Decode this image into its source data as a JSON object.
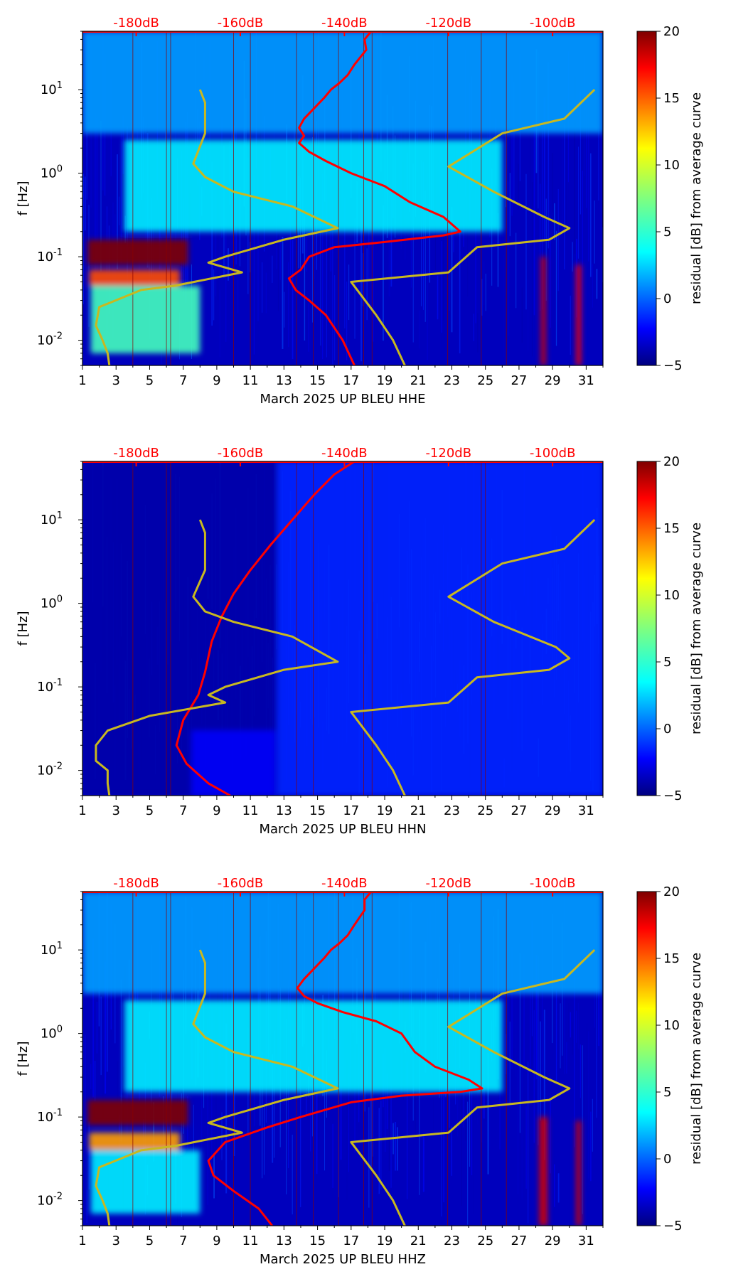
{
  "chart_data": [
    {
      "type": "heatmap",
      "panel": "HHE",
      "xlabel": "March 2025 UP BLEU  HHE",
      "ylabel": "f [Hz]",
      "xlim": [
        1,
        32
      ],
      "ylim": [
        0.005,
        50
      ],
      "yscale": "log",
      "xticks": [
        1,
        3,
        5,
        7,
        9,
        11,
        13,
        15,
        17,
        19,
        21,
        23,
        25,
        27,
        29,
        31
      ],
      "yticks": [
        "10^-2",
        "10^-1",
        "10^0",
        "10^1"
      ],
      "top_labels": [
        "-180dB",
        "-160dB",
        "-140dB",
        "-120dB",
        "-100dB"
      ],
      "top_label_days": [
        4.2,
        10.4,
        16.6,
        22.8,
        29.0
      ],
      "colorbar": {
        "label": "residual [dB] from average curve",
        "min": -5,
        "max": 20,
        "ticks": [
          -5,
          0,
          5,
          10,
          15,
          20
        ]
      },
      "vertical_lines": [
        4.0,
        6.0,
        6.25,
        10.0,
        11.0,
        13.75,
        14.75,
        16.25,
        17.75,
        18.25,
        22.75,
        24.75,
        26.25
      ],
      "hotspots": [
        {
          "x0": 1.3,
          "x1": 7.3,
          "f0": 0.08,
          "f1": 0.16,
          "level": 20
        },
        {
          "x0": 1.4,
          "x1": 6.8,
          "f0": 0.045,
          "f1": 0.07,
          "level": 15
        },
        {
          "x0": 1.5,
          "x1": 8.0,
          "f0": 0.007,
          "f1": 0.045,
          "level": 6
        },
        {
          "x0": 1.0,
          "x1": 32.0,
          "f0": 3.0,
          "f1": 50.0,
          "level": 2
        },
        {
          "x0": 3.5,
          "x1": 26.0,
          "f0": 0.2,
          "f1": 2.5,
          "level": 4
        },
        {
          "x0": 28.3,
          "x1": 28.6,
          "f0": 0.005,
          "f1": 0.1,
          "level": 18
        },
        {
          "x0": 30.4,
          "x1": 30.7,
          "f0": 0.005,
          "f1": 0.08,
          "level": 17
        }
      ],
      "series": [
        {
          "color": "#ff0000",
          "points": [
            [
              18.2,
              50
            ],
            [
              17.8,
              40
            ],
            [
              17.9,
              30
            ],
            [
              17.2,
              20
            ],
            [
              16.8,
              15
            ],
            [
              16.3,
              12
            ],
            [
              15.8,
              10
            ],
            [
              15.4,
              8
            ],
            [
              14.8,
              6
            ],
            [
              14.2,
              4.5
            ],
            [
              13.9,
              3.5
            ],
            [
              14.2,
              2.8
            ],
            [
              13.9,
              2.3
            ],
            [
              14.5,
              1.8
            ],
            [
              15.5,
              1.4
            ],
            [
              17,
              1.0
            ],
            [
              19,
              0.7
            ],
            [
              20.5,
              0.45
            ],
            [
              22.5,
              0.3
            ],
            [
              23.5,
              0.2
            ],
            [
              22.5,
              0.18
            ],
            [
              19,
              0.15
            ],
            [
              16,
              0.13
            ],
            [
              14.5,
              0.1
            ],
            [
              14,
              0.07
            ],
            [
              13.3,
              0.055
            ],
            [
              13.7,
              0.04
            ],
            [
              14.5,
              0.03
            ],
            [
              15.5,
              0.02
            ],
            [
              16.5,
              0.01
            ],
            [
              17.2,
              0.005
            ]
          ]
        },
        {
          "color": "#c8b820",
          "points": [
            [
              8,
              10
            ],
            [
              8.3,
              7
            ],
            [
              8.3,
              3
            ],
            [
              7.6,
              1.3
            ],
            [
              8.3,
              0.9
            ],
            [
              10,
              0.6
            ],
            [
              13.5,
              0.4
            ],
            [
              16.2,
              0.22
            ],
            [
              13,
              0.16
            ],
            [
              9.5,
              0.1
            ],
            [
              8.5,
              0.085
            ],
            [
              10.5,
              0.065
            ],
            [
              6.5,
              0.045
            ],
            [
              4.5,
              0.04
            ],
            [
              2,
              0.025
            ],
            [
              1.8,
              0.015
            ],
            [
              2.2,
              0.01
            ],
            [
              2.5,
              0.007
            ],
            [
              2.6,
              0.005
            ]
          ]
        },
        {
          "color": "#c8b820",
          "points": [
            [
              31.5,
              10
            ],
            [
              29.7,
              4.5
            ],
            [
              26,
              3
            ],
            [
              22.8,
              1.2
            ],
            [
              25.5,
              0.6
            ],
            [
              28.5,
              0.3
            ],
            [
              30,
              0.22
            ],
            [
              28.8,
              0.16
            ],
            [
              24.5,
              0.13
            ],
            [
              22.8,
              0.065
            ],
            [
              17,
              0.05
            ],
            [
              18.5,
              0.02
            ],
            [
              19.5,
              0.01
            ],
            [
              20.2,
              0.005
            ]
          ]
        }
      ]
    },
    {
      "type": "heatmap",
      "panel": "HHN",
      "xlabel": "March 2025 UP BLEU  HHN",
      "ylabel": "f [Hz]",
      "xlim": [
        1,
        32
      ],
      "ylim": [
        0.005,
        50
      ],
      "yscale": "log",
      "xticks": [
        1,
        3,
        5,
        7,
        9,
        11,
        13,
        15,
        17,
        19,
        21,
        23,
        25,
        27,
        29,
        31
      ],
      "yticks": [
        "10^-2",
        "10^-1",
        "10^0",
        "10^1"
      ],
      "top_labels": [
        "-180dB",
        "-160dB",
        "-140dB",
        "-120dB",
        "-100dB"
      ],
      "top_label_days": [
        4.2,
        10.4,
        16.6,
        22.8,
        29.0
      ],
      "colorbar": {
        "label": "residual [dB] from average curve",
        "min": -5,
        "max": 20,
        "ticks": [
          -5,
          0,
          5,
          10,
          15,
          20
        ]
      },
      "vertical_lines": [
        4.0,
        6.0,
        6.25,
        13.75,
        14.75,
        17.75,
        18.25,
        24.75,
        25.0
      ],
      "hotspots": [
        {
          "x0": 1.0,
          "x1": 12.6,
          "f0": 0.005,
          "f1": 50,
          "level": -4
        },
        {
          "x0": 12.6,
          "x1": 32.0,
          "f0": 0.005,
          "f1": 50,
          "level": -1
        },
        {
          "x0": 7.5,
          "x1": 12.5,
          "f0": 0.005,
          "f1": 0.03,
          "level": -2
        }
      ],
      "series": [
        {
          "color": "#ff0000",
          "points": [
            [
              17.2,
              50
            ],
            [
              16,
              35
            ],
            [
              14.8,
              20
            ],
            [
              13.5,
              10
            ],
            [
              12.2,
              5
            ],
            [
              11,
              2.5
            ],
            [
              10,
              1.3
            ],
            [
              9.3,
              0.7
            ],
            [
              8.7,
              0.35
            ],
            [
              8.3,
              0.15
            ],
            [
              7.9,
              0.08
            ],
            [
              7,
              0.04
            ],
            [
              6.6,
              0.02
            ],
            [
              7.2,
              0.012
            ],
            [
              8.5,
              0.007
            ],
            [
              9.8,
              0.005
            ]
          ]
        },
        {
          "color": "#c8b820",
          "points": [
            [
              8,
              10
            ],
            [
              8.3,
              7
            ],
            [
              8.3,
              2.5
            ],
            [
              7.6,
              1.2
            ],
            [
              8.3,
              0.8
            ],
            [
              10,
              0.6
            ],
            [
              13.5,
              0.4
            ],
            [
              16.2,
              0.2
            ],
            [
              13,
              0.16
            ],
            [
              9.5,
              0.1
            ],
            [
              8.5,
              0.08
            ],
            [
              9.5,
              0.065
            ],
            [
              5,
              0.045
            ],
            [
              2.5,
              0.03
            ],
            [
              1.8,
              0.02
            ],
            [
              1.8,
              0.013
            ],
            [
              2.5,
              0.01
            ],
            [
              2.5,
              0.007
            ],
            [
              2.6,
              0.005
            ]
          ]
        },
        {
          "color": "#c8b820",
          "points": [
            [
              31.5,
              10
            ],
            [
              29.7,
              4.5
            ],
            [
              26,
              3
            ],
            [
              22.8,
              1.2
            ],
            [
              25.5,
              0.6
            ],
            [
              29.2,
              0.3
            ],
            [
              30,
              0.22
            ],
            [
              28.8,
              0.16
            ],
            [
              24.5,
              0.13
            ],
            [
              22.8,
              0.065
            ],
            [
              17,
              0.05
            ],
            [
              18.5,
              0.02
            ],
            [
              19.5,
              0.01
            ],
            [
              20.2,
              0.005
            ]
          ]
        }
      ]
    },
    {
      "type": "heatmap",
      "panel": "HHZ",
      "xlabel": "March 2025 UP BLEU  HHZ",
      "ylabel": "f [Hz]",
      "xlim": [
        1,
        32
      ],
      "ylim": [
        0.005,
        50
      ],
      "yscale": "log",
      "xticks": [
        1,
        3,
        5,
        7,
        9,
        11,
        13,
        15,
        17,
        19,
        21,
        23,
        25,
        27,
        29,
        31
      ],
      "yticks": [
        "10^-2",
        "10^-1",
        "10^0",
        "10^1"
      ],
      "top_labels": [
        "-180dB",
        "-160dB",
        "-140dB",
        "-120dB",
        "-100dB"
      ],
      "top_label_days": [
        4.2,
        10.4,
        16.6,
        22.8,
        29.0
      ],
      "colorbar": {
        "label": "residual [dB] from average curve",
        "min": -5,
        "max": 20,
        "ticks": [
          -5,
          0,
          5,
          10,
          15,
          20
        ]
      },
      "vertical_lines": [
        4.0,
        6.0,
        6.25,
        10.0,
        11.0,
        13.75,
        14.75,
        16.25,
        17.75,
        18.25,
        22.75,
        24.75,
        26.25
      ],
      "hotspots": [
        {
          "x0": 1.3,
          "x1": 7.3,
          "f0": 0.08,
          "f1": 0.16,
          "level": 20
        },
        {
          "x0": 1.4,
          "x1": 6.8,
          "f0": 0.04,
          "f1": 0.065,
          "level": 13
        },
        {
          "x0": 1.5,
          "x1": 8.0,
          "f0": 0.007,
          "f1": 0.04,
          "level": 4
        },
        {
          "x0": 1.0,
          "x1": 32.0,
          "f0": 3.0,
          "f1": 50.0,
          "level": 2
        },
        {
          "x0": 3.5,
          "x1": 26.0,
          "f0": 0.2,
          "f1": 2.5,
          "level": 4
        },
        {
          "x0": 28.2,
          "x1": 28.7,
          "f0": 0.005,
          "f1": 0.1,
          "level": 18
        },
        {
          "x0": 30.4,
          "x1": 30.7,
          "f0": 0.005,
          "f1": 0.09,
          "level": 18
        }
      ],
      "series": [
        {
          "color": "#ff0000",
          "points": [
            [
              18.2,
              50
            ],
            [
              17.8,
              40
            ],
            [
              17.8,
              30
            ],
            [
              17.2,
              20
            ],
            [
              16.8,
              15
            ],
            [
              16.3,
              12
            ],
            [
              15.8,
              10
            ],
            [
              15.4,
              8
            ],
            [
              14.8,
              6
            ],
            [
              14.2,
              4.5
            ],
            [
              13.8,
              3.5
            ],
            [
              14.2,
              2.8
            ],
            [
              15,
              2.3
            ],
            [
              16.5,
              1.8
            ],
            [
              18.5,
              1.4
            ],
            [
              20,
              1.0
            ],
            [
              20.8,
              0.6
            ],
            [
              22,
              0.4
            ],
            [
              24,
              0.28
            ],
            [
              24.8,
              0.22
            ],
            [
              23.5,
              0.2
            ],
            [
              20,
              0.18
            ],
            [
              17,
              0.15
            ],
            [
              14,
              0.1
            ],
            [
              12,
              0.075
            ],
            [
              9.5,
              0.05
            ],
            [
              8.5,
              0.03
            ],
            [
              8.8,
              0.02
            ],
            [
              10,
              0.013
            ],
            [
              11.5,
              0.008
            ],
            [
              12.3,
              0.005
            ]
          ]
        },
        {
          "color": "#c8b820",
          "points": [
            [
              8,
              10
            ],
            [
              8.3,
              7
            ],
            [
              8.3,
              3
            ],
            [
              7.6,
              1.3
            ],
            [
              8.3,
              0.9
            ],
            [
              10,
              0.6
            ],
            [
              13.5,
              0.4
            ],
            [
              16.2,
              0.22
            ],
            [
              13,
              0.16
            ],
            [
              9.5,
              0.1
            ],
            [
              8.5,
              0.085
            ],
            [
              10.5,
              0.065
            ],
            [
              6.5,
              0.045
            ],
            [
              4.5,
              0.04
            ],
            [
              2,
              0.025
            ],
            [
              1.8,
              0.015
            ],
            [
              2.2,
              0.01
            ],
            [
              2.5,
              0.007
            ],
            [
              2.6,
              0.005
            ]
          ]
        },
        {
          "color": "#c8b820",
          "points": [
            [
              31.5,
              10
            ],
            [
              29.7,
              4.5
            ],
            [
              26,
              3
            ],
            [
              22.8,
              1.2
            ],
            [
              25.5,
              0.6
            ],
            [
              28.5,
              0.3
            ],
            [
              30,
              0.22
            ],
            [
              28.8,
              0.16
            ],
            [
              24.5,
              0.13
            ],
            [
              22.8,
              0.065
            ],
            [
              17,
              0.05
            ],
            [
              18.5,
              0.02
            ],
            [
              19.5,
              0.01
            ],
            [
              20.2,
              0.005
            ]
          ]
        }
      ]
    }
  ]
}
